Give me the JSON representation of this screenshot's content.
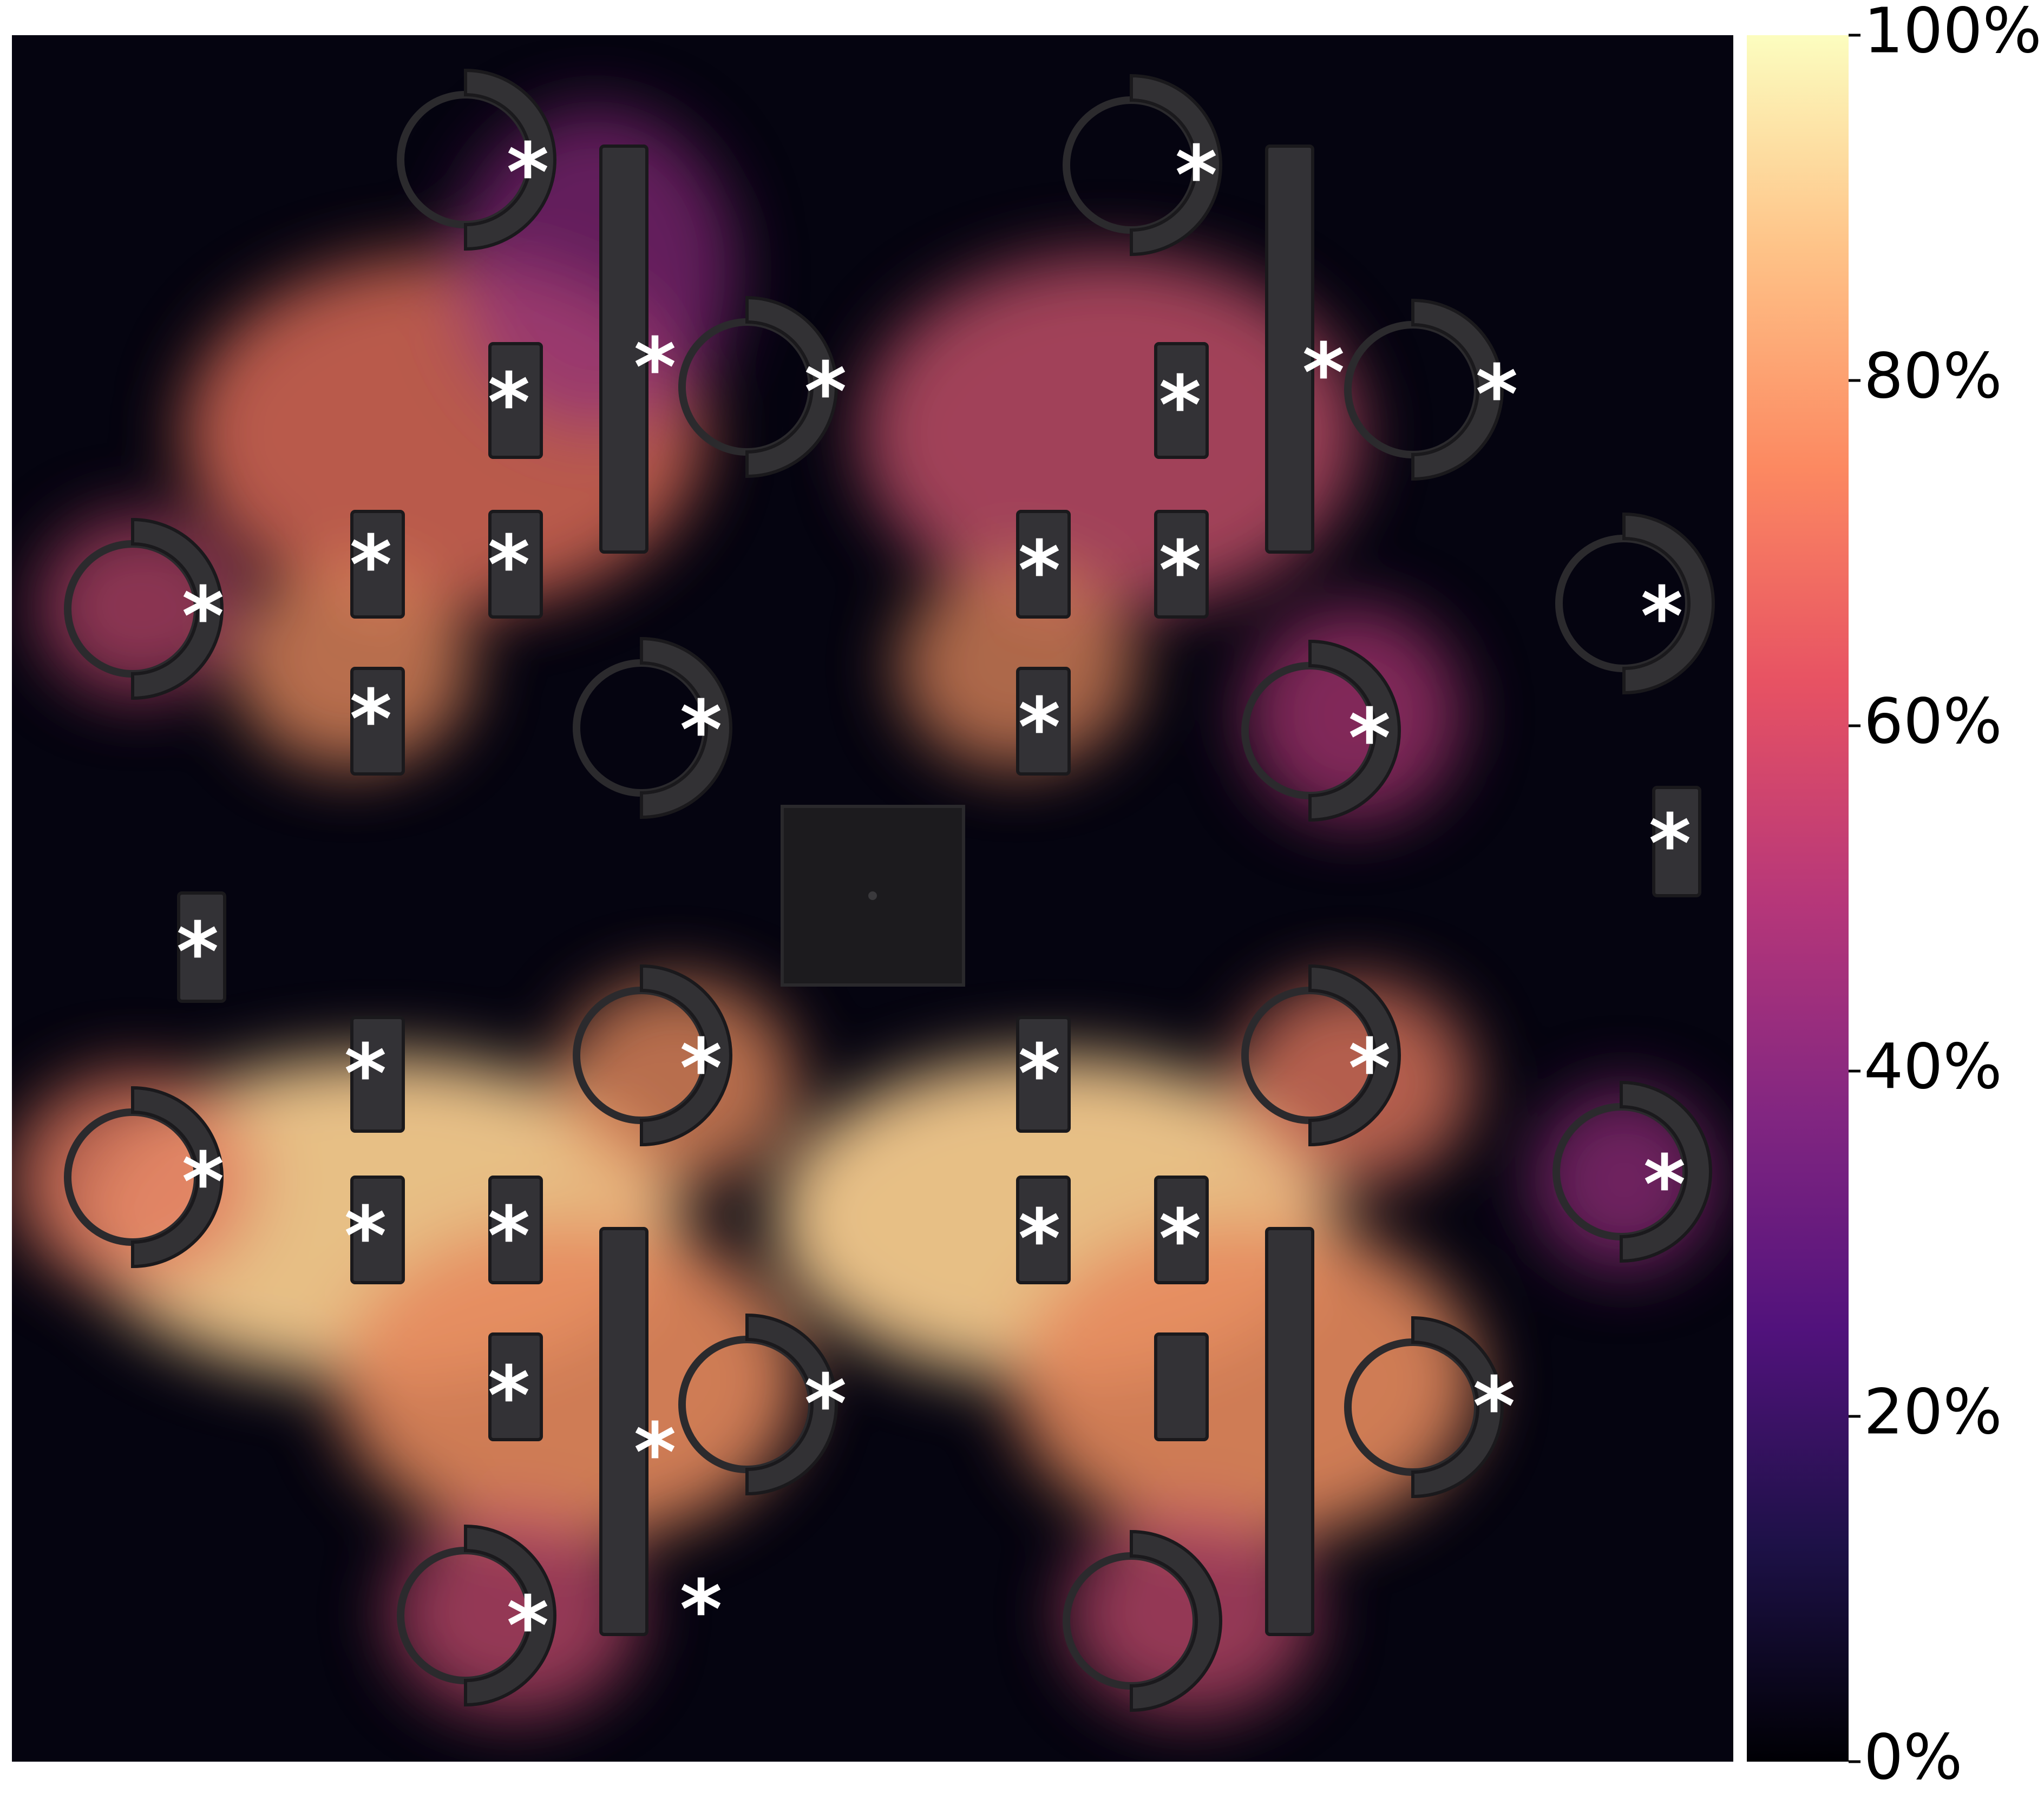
{
  "colorbar": {
    "colormap": "magma",
    "ticks": [
      {
        "value": 0,
        "label": "0%"
      },
      {
        "value": 20,
        "label": "20%"
      },
      {
        "value": 40,
        "label": "40%"
      },
      {
        "value": 60,
        "label": "60%"
      },
      {
        "value": 80,
        "label": "80%"
      },
      {
        "value": 100,
        "label": "100%"
      }
    ],
    "stops": [
      "#000004",
      "#1d1147",
      "#51127c",
      "#822681",
      "#b73779",
      "#e75263",
      "#fc8961",
      "#fec287",
      "#fcfdbf"
    ]
  },
  "markers": {
    "symbol": "*",
    "count": 36
  }
}
